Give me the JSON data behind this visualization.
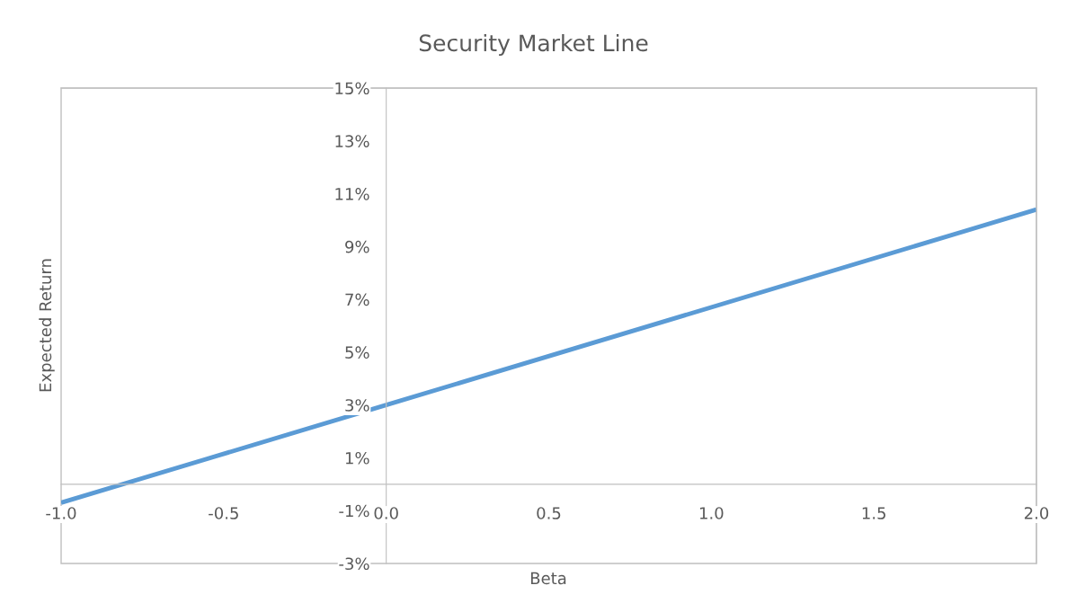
{
  "chart_data": {
    "type": "line",
    "title": "Security Market Line",
    "xlabel": "Beta",
    "ylabel": "Expected Return",
    "x": [
      -1.0,
      0.0,
      2.0
    ],
    "series": [
      {
        "color": "#5b9bd5",
        "values": [
          -0.7,
          3.0,
          10.4
        ]
      }
    ],
    "xlim": [
      -1.0,
      2.0
    ],
    "xticks": [
      {
        "value": -1.0,
        "label": "-1.0"
      },
      {
        "value": -0.5,
        "label": "-0.5"
      },
      {
        "value": 0.0,
        "label": "0.0"
      },
      {
        "value": 0.5,
        "label": "0.5"
      },
      {
        "value": 1.0,
        "label": "1.0"
      },
      {
        "value": 1.5,
        "label": "1.5"
      },
      {
        "value": 2.0,
        "label": "2.0"
      }
    ],
    "ylim": [
      -3,
      15
    ],
    "yticks": [
      {
        "value": -3,
        "label": "-3%"
      },
      {
        "value": -1,
        "label": "-1%"
      },
      {
        "value": 1,
        "label": "1%"
      },
      {
        "value": 3,
        "label": "3%"
      },
      {
        "value": 5,
        "label": "5%"
      },
      {
        "value": 7,
        "label": "7%"
      },
      {
        "value": 9,
        "label": "9%"
      },
      {
        "value": 11,
        "label": "11%"
      },
      {
        "value": 13,
        "label": "13%"
      },
      {
        "value": 15,
        "label": "15%"
      }
    ],
    "grid": false,
    "legend": false,
    "marker": "none",
    "line_style": "solid"
  }
}
